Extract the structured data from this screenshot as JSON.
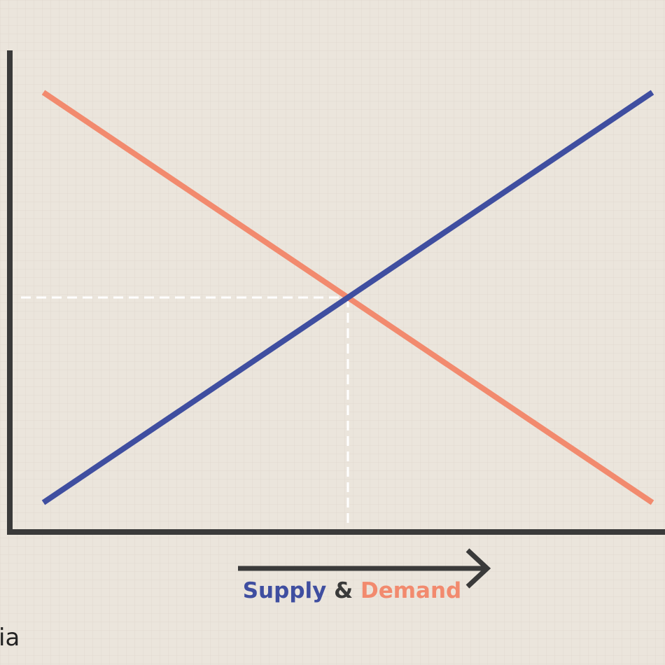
{
  "axis_label": {
    "supply": "Supply",
    "joiner": "&",
    "demand": "Demand"
  },
  "footer": {
    "logo_fragment": "ia"
  }
}
